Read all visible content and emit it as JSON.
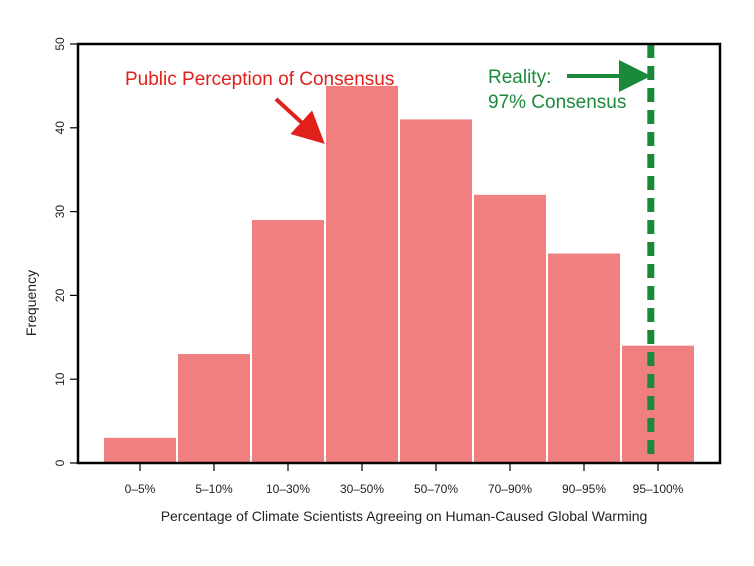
{
  "chart_data": {
    "type": "bar",
    "categories": [
      "0–5%",
      "5–10%",
      "10–30%",
      "30–50%",
      "50–70%",
      "70–90%",
      "90–95%",
      "95–100%"
    ],
    "values": [
      3,
      13,
      29,
      45,
      41,
      32,
      25,
      14
    ],
    "title": "",
    "xlabel": "Percentage of Climate Scientists Agreeing on Human-Caused Global Warming",
    "ylabel": "Frequency",
    "ylim": [
      0,
      50
    ],
    "yticks": [
      0,
      10,
      20,
      30,
      40,
      50
    ],
    "bar_color": "#f08080",
    "grid": false,
    "reference_line": {
      "value": 97,
      "label": "97%",
      "style": "dashed",
      "color": "#1a8a3a"
    },
    "annotations": [
      {
        "text": "Public Perception of Consensus",
        "color": "#e0201b",
        "points_to": "30–50%"
      },
      {
        "text_line1": "Reality:",
        "text_line2": "97% Consensus",
        "color": "#1a8a3a",
        "points_to": "97%"
      }
    ]
  }
}
